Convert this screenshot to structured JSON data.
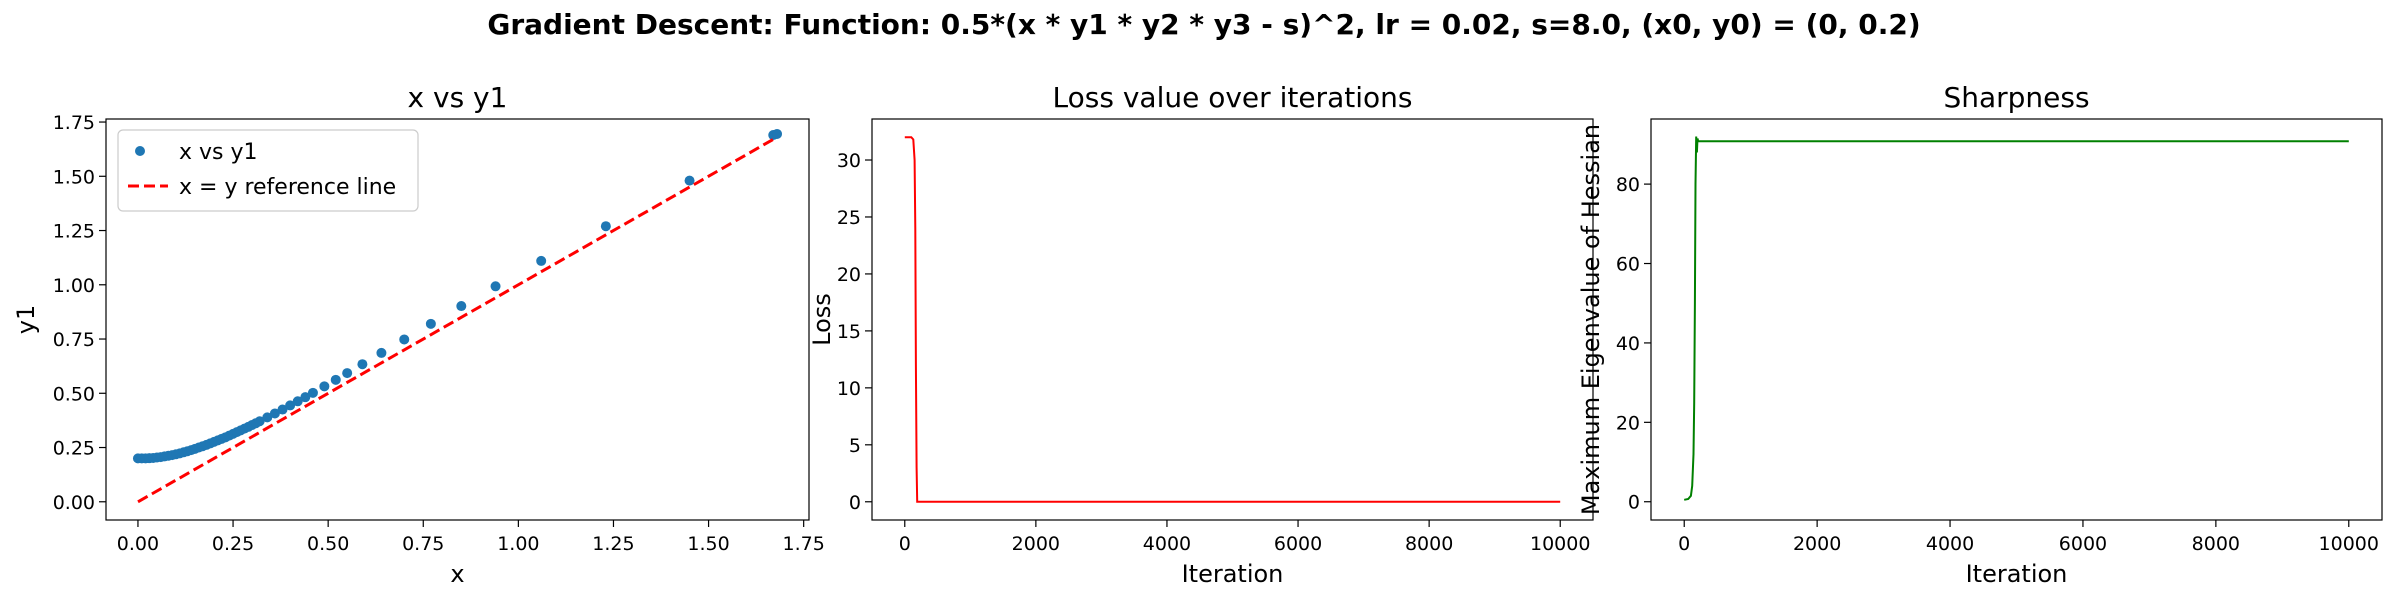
{
  "figure": {
    "suptitle": "Gradient Descent: Function: 0.5*(x * y1 * y2 * y3 - s)^2, lr = 0.02, s=8.0, (x0, y0) = (0, 0.2)"
  },
  "chart_data": [
    {
      "type": "scatter",
      "title": "x vs y1",
      "xlabel": "x",
      "ylabel": "y1",
      "xlim": [
        -0.084,
        1.764
      ],
      "ylim": [
        -0.084,
        1.764
      ],
      "xticks": [
        "0.00",
        "0.25",
        "0.50",
        "0.75",
        "1.00",
        "1.25",
        "1.50",
        "1.75"
      ],
      "yticks": [
        "0.00",
        "0.25",
        "0.50",
        "0.75",
        "1.00",
        "1.25",
        "1.50",
        "1.75"
      ],
      "grid": false,
      "legend": "upper left",
      "series": [
        {
          "name": "x vs y1",
          "kind": "scatter",
          "color": "#1f77b4",
          "x": [
            0.0,
            0.01,
            0.02,
            0.03,
            0.04,
            0.05,
            0.06,
            0.07,
            0.08,
            0.09,
            0.1,
            0.11,
            0.12,
            0.13,
            0.14,
            0.15,
            0.16,
            0.17,
            0.18,
            0.19,
            0.2,
            0.21,
            0.22,
            0.23,
            0.24,
            0.25,
            0.26,
            0.27,
            0.28,
            0.29,
            0.3,
            0.31,
            0.32,
            0.34,
            0.36,
            0.38,
            0.4,
            0.42,
            0.44,
            0.46,
            0.49,
            0.52,
            0.55,
            0.59,
            0.64,
            0.7,
            0.77,
            0.85,
            0.94,
            1.06,
            1.23,
            1.45,
            1.67,
            1.68
          ],
          "y": [
            0.2,
            0.2,
            0.2,
            0.201,
            0.202,
            0.204,
            0.206,
            0.209,
            0.212,
            0.215,
            0.219,
            0.223,
            0.228,
            0.233,
            0.238,
            0.244,
            0.25,
            0.256,
            0.262,
            0.269,
            0.276,
            0.283,
            0.29,
            0.297,
            0.305,
            0.313,
            0.321,
            0.329,
            0.337,
            0.345,
            0.354,
            0.362,
            0.371,
            0.389,
            0.407,
            0.425,
            0.444,
            0.463,
            0.482,
            0.502,
            0.532,
            0.562,
            0.593,
            0.634,
            0.686,
            0.748,
            0.82,
            0.902,
            0.993,
            1.11,
            1.27,
            1.48,
            1.69,
            1.695
          ]
        },
        {
          "name": "x = y reference line",
          "kind": "line",
          "style": "dashed",
          "color": "#ff0000",
          "x": [
            0.0,
            1.68
          ],
          "y": [
            0.0,
            1.68
          ]
        }
      ]
    },
    {
      "type": "line",
      "title": "Loss value over iterations",
      "xlabel": "Iteration",
      "ylabel": "Loss",
      "xlim": [
        -500,
        10500
      ],
      "ylim": [
        -1.6,
        33.6
      ],
      "xticks": [
        "0",
        "2000",
        "4000",
        "6000",
        "8000",
        "10000"
      ],
      "yticks": [
        "0",
        "5",
        "10",
        "15",
        "20",
        "25",
        "30"
      ],
      "grid": false,
      "series": [
        {
          "color": "#ff0000",
          "x": [
            0,
            100,
            130,
            150,
            160,
            170,
            180,
            190,
            10000
          ],
          "y": [
            32.0,
            32.0,
            31.8,
            30.0,
            24.0,
            12.0,
            3.0,
            0.0,
            0.0
          ]
        }
      ]
    },
    {
      "type": "line",
      "title": "Sharpness",
      "xlabel": "Iteration",
      "ylabel": "Maximum Eigenvalue of Hessian",
      "xlim": [
        -500,
        10500
      ],
      "ylim": [
        -4.6,
        96.4
      ],
      "xticks": [
        "0",
        "2000",
        "4000",
        "6000",
        "8000",
        "10000"
      ],
      "yticks": [
        "0",
        "20",
        "40",
        "60",
        "80"
      ],
      "grid": false,
      "series": [
        {
          "color": "#008000",
          "x": [
            0,
            60,
            100,
            120,
            140,
            150,
            160,
            170,
            180,
            190,
            200,
            210,
            10000
          ],
          "y": [
            0.5,
            0.7,
            1.5,
            4.0,
            12.0,
            25.0,
            50.0,
            80.0,
            92.0,
            88.0,
            91.5,
            90.8,
            90.8
          ]
        }
      ]
    }
  ]
}
